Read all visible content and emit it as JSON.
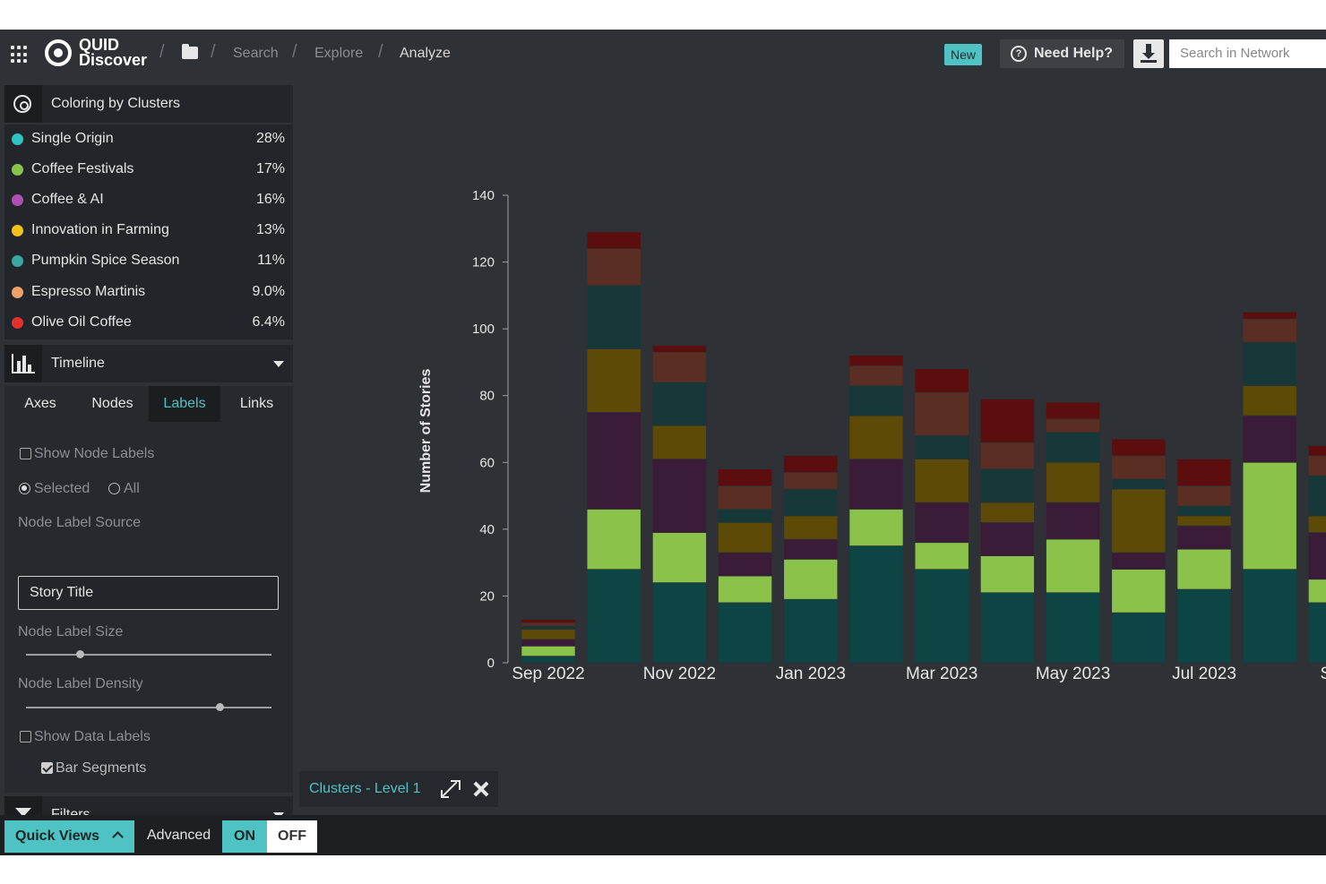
{
  "header": {
    "logo_line1": "QUID",
    "logo_line2": "Discover",
    "breadcrumbs": [
      "Search",
      "Explore",
      "Analyze"
    ],
    "new_badge": "New",
    "help_label": "Need Help?",
    "search_placeholder": "Search in Network"
  },
  "coloring": {
    "title": "Coloring by Clusters",
    "clusters": [
      {
        "name": "Single Origin",
        "pct": "28%",
        "color": "#2ec4c4"
      },
      {
        "name": "Coffee Festivals",
        "pct": "17%",
        "color": "#8bc34a"
      },
      {
        "name": "Coffee & AI",
        "pct": "16%",
        "color": "#b04fb3"
      },
      {
        "name": "Innovation in Farming",
        "pct": "13%",
        "color": "#f2c21b"
      },
      {
        "name": "Pumpkin Spice Season",
        "pct": "11%",
        "color": "#3aa7a0"
      },
      {
        "name": "Espresso Martinis",
        "pct": "9.0%",
        "color": "#f0a166"
      },
      {
        "name": "Olive Oil Coffee",
        "pct": "6.4%",
        "color": "#e3322b"
      }
    ]
  },
  "view": {
    "title": "Timeline",
    "tabs": [
      "Axes",
      "Nodes",
      "Labels",
      "Links"
    ],
    "active_tab": "Labels"
  },
  "labels_panel": {
    "show_node_labels": "Show Node Labels",
    "radio_selected": "Selected",
    "radio_all": "All",
    "source_label": "Node Label Source",
    "source_value": "Story Title",
    "size_label": "Node Label Size",
    "size_level": 0.22,
    "density_label": "Node Label Density",
    "density_level": 0.79,
    "show_data_labels": "Show Data Labels",
    "bar_segments": "Bar Segments"
  },
  "filters": {
    "title": "Filters"
  },
  "chart_tag": {
    "label": "Clusters - Level 1"
  },
  "bottom": {
    "quick_views": "Quick Views",
    "advanced": "Advanced",
    "on": "ON",
    "off": "OFF"
  },
  "chart_data": {
    "type": "bar",
    "stacked": true,
    "ylabel": "Number of Stories",
    "ylim": [
      0,
      140
    ],
    "yticks": [
      0,
      20,
      40,
      60,
      80,
      100,
      120,
      140
    ],
    "categories": [
      "Sep 2022",
      "Oct 2022",
      "Nov 2022",
      "Dec 2022",
      "Jan 2023",
      "Feb 2023",
      "Mar 2023",
      "Apr 2023",
      "May 2023",
      "Jun 2023",
      "Jul 2023",
      "Aug 2023",
      "Sep 2023"
    ],
    "xtick_labels": [
      "Sep 2022",
      "Nov 2022",
      "Jan 2023",
      "Mar 2023",
      "May 2023",
      "Jul 2023",
      "Sep"
    ],
    "grid": false,
    "series": [
      {
        "name": "Single Origin",
        "color": "#0d4444",
        "values": [
          2,
          28,
          24,
          18,
          19,
          35,
          28,
          21,
          21,
          15,
          22,
          28,
          18
        ]
      },
      {
        "name": "Coffee Festivals",
        "color": "#8bc34a",
        "values": [
          3,
          18,
          15,
          8,
          12,
          11,
          8,
          11,
          16,
          13,
          12,
          32,
          7
        ]
      },
      {
        "name": "Coffee & AI",
        "color": "#3a1c38",
        "values": [
          2,
          29,
          22,
          7,
          6,
          15,
          12,
          10,
          11,
          5,
          7,
          14,
          14
        ]
      },
      {
        "name": "Innovation in Farming",
        "color": "#5c4a06",
        "values": [
          3,
          19,
          10,
          9,
          7,
          13,
          13,
          6,
          12,
          19,
          3,
          9,
          5
        ]
      },
      {
        "name": "Pumpkin Spice Season",
        "color": "#163838",
        "values": [
          1,
          19,
          13,
          4,
          8,
          9,
          7,
          10,
          9,
          3,
          3,
          13,
          12
        ]
      },
      {
        "name": "Espresso Martinis",
        "color": "#5a2e22",
        "values": [
          1,
          11,
          9,
          7,
          5,
          6,
          13,
          8,
          4,
          7,
          6,
          7,
          6
        ]
      },
      {
        "name": "Olive Oil Coffee",
        "color": "#5c0d0d",
        "values": [
          1,
          5,
          2,
          5,
          5,
          3,
          7,
          13,
          5,
          5,
          8,
          2,
          3
        ]
      }
    ]
  }
}
